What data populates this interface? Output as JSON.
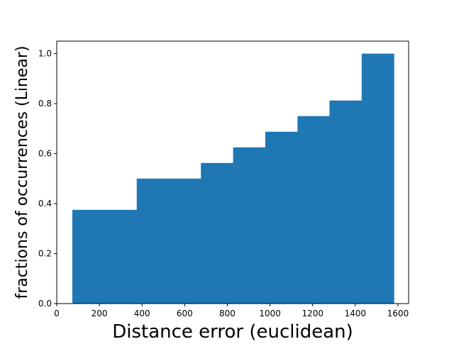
{
  "chart_data": {
    "type": "bar",
    "style": "cumulative-histogram",
    "title": "",
    "xlabel": "Distance error (euclidean)",
    "ylabel": "fractions of occurrences (Linear)",
    "bin_edges": [
      73,
      375,
      676,
      827,
      978,
      1129,
      1279,
      1430,
      1581
    ],
    "values": [
      0.375,
      0.5,
      0.5625,
      0.625,
      0.6875,
      0.75,
      0.8125,
      1.0
    ],
    "xlim": [
      0,
      1650
    ],
    "ylim": [
      0,
      1.05
    ],
    "xticks": [
      0,
      200,
      400,
      600,
      800,
      1000,
      1200,
      1400,
      1600
    ],
    "yticks": [
      0.0,
      0.2,
      0.4,
      0.6,
      0.8,
      1.0
    ],
    "ytick_labels": [
      "0.0",
      "0.2",
      "0.4",
      "0.6",
      "0.8",
      "1.0"
    ],
    "bar_color": "#1f77b4",
    "grid": false,
    "legend": "none"
  }
}
